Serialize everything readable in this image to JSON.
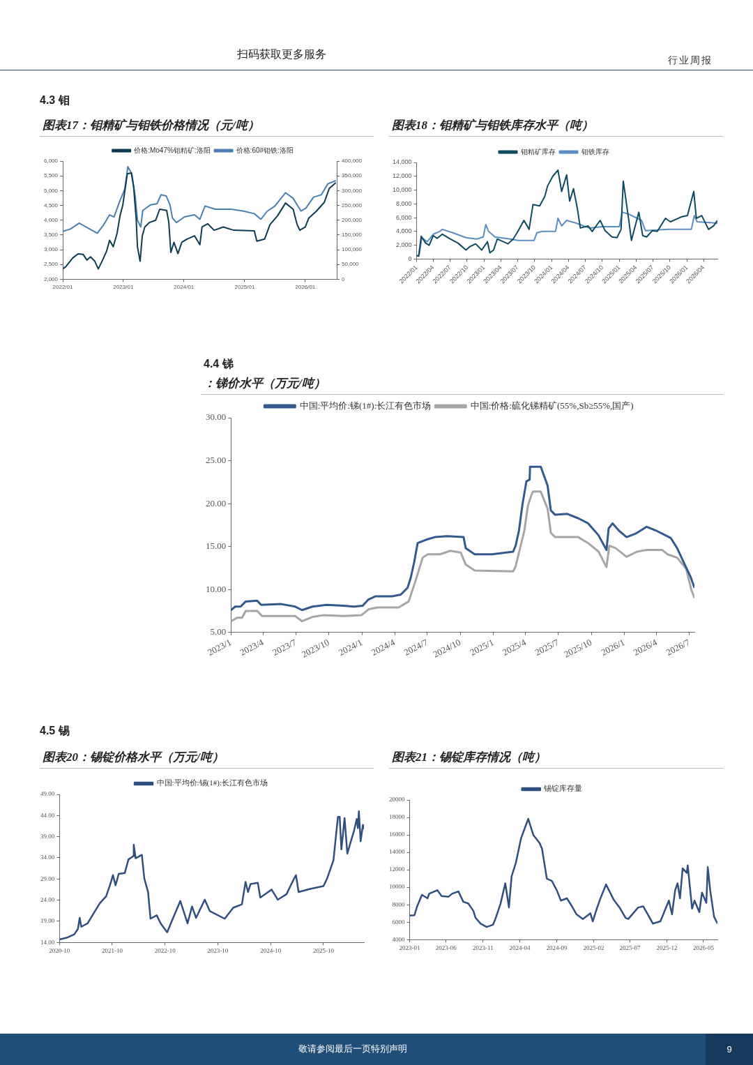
{
  "chart_data": [
    {
      "type": "line",
      "subtitle": "4.3 钼",
      "title": "图表17：钼精矿与钼铁价格情况（元/吨）",
      "annotations": [
        "扫码获取更多服务",
        "行业周报"
      ],
      "legend": "top",
      "xlim": [
        "2022-01-01",
        "2026-07-10"
      ],
      "xticks": [
        {
          "value": "2022-01-01",
          "label": "2022/01"
        },
        {
          "value": "2023-01-01",
          "label": "2023/01"
        },
        {
          "value": "2024-01-01",
          "label": "2024/01"
        },
        {
          "value": "2025-01-01",
          "label": "2025/01"
        },
        {
          "value": "2026-01-01",
          "label": "2026/01"
        }
      ],
      "ylim": [
        2000,
        6000
      ],
      "yticks": [
        {
          "value": 2000,
          "label": "2,000"
        },
        {
          "value": 2500,
          "label": "2,500"
        },
        {
          "value": 3000,
          "label": "3,000"
        },
        {
          "value": 3500,
          "label": "3,500"
        },
        {
          "value": 4000,
          "label": "4,000"
        },
        {
          "value": 4500,
          "label": "4,500"
        },
        {
          "value": 5000,
          "label": "5,000"
        },
        {
          "value": 5500,
          "label": "5,500"
        },
        {
          "value": 6000,
          "label": "6,000"
        }
      ],
      "y2lim": [
        0,
        400000
      ],
      "y2ticks": [
        0,
        {
          "value": 50000,
          "label": "50,000"
        },
        {
          "value": 100000,
          "label": "100,000"
        },
        {
          "value": 150000,
          "label": "150,000"
        },
        {
          "value": 200000,
          "label": "200,000"
        },
        {
          "value": 250000,
          "label": "250,000"
        },
        {
          "value": 300000,
          "label": "300,000"
        },
        {
          "value": 350000,
          "label": "350,000"
        },
        {
          "value": 400000,
          "label": "400,000"
        }
      ],
      "series": [
        {
          "name": "价格:Mo47%钼精矿:洛阳",
          "color": "#0d3b4f",
          "axis": "y",
          "x": [
            "2022-01-01",
            "2022-01-20",
            "2022-03-02",
            "2022-04-03",
            "2022-05-04",
            "2022-05-27",
            "2022-06-17",
            "2022-07-13",
            "2022-08-03",
            "2022-08-29",
            "2022-09-22",
            "2022-10-10",
            "2022-11-01",
            "2022-11-24",
            "2022-12-12",
            "2022-12-29",
            "2023-01-25",
            "2023-02-18",
            "2023-03-04",
            "2023-03-19",
            "2023-03-27",
            "2023-04-12",
            "2023-04-25",
            "2023-05-10",
            "2023-06-06",
            "2023-07-15",
            "2023-08-08",
            "2023-09-19",
            "2023-10-02",
            "2023-10-14",
            "2023-11-02",
            "2023-11-26",
            "2023-12-19",
            "2024-01-19",
            "2024-03-05",
            "2024-04-06",
            "2024-04-19",
            "2024-05-23",
            "2024-07-01",
            "2024-08-25",
            "2024-10-27",
            "2025-02-28",
            "2025-03-15",
            "2025-05-01",
            "2025-06-02",
            "2025-07-18",
            "2025-09-04",
            "2025-10-20",
            "2025-11-13",
            "2025-11-29",
            "2026-01-01",
            "2026-01-22",
            "2026-03-08",
            "2026-04-25",
            "2026-05-26",
            "2026-07-04"
          ],
          "values": [
            2350,
            2430,
            2720,
            2860,
            2840,
            2650,
            2760,
            2610,
            2350,
            2650,
            2950,
            3320,
            3100,
            3550,
            4150,
            4520,
            5570,
            5600,
            5120,
            4070,
            3100,
            2610,
            3470,
            3770,
            3920,
            4000,
            4370,
            4330,
            3920,
            2910,
            3250,
            2870,
            3250,
            3360,
            3470,
            3170,
            3770,
            3880,
            3660,
            3770,
            3660,
            3640,
            3290,
            3360,
            3850,
            4150,
            4580,
            4370,
            3850,
            3660,
            3770,
            4070,
            4300,
            4600,
            5080,
            5270
          ]
        },
        {
          "name": "价格:60#钼铁:洛阳",
          "color": "#4a7fb0",
          "axis": "y2",
          "x": [
            "2022-01-01",
            "2022-02-16",
            "2022-04-10",
            "2022-06-03",
            "2022-07-28",
            "2022-09-05",
            "2022-10-10",
            "2022-11-06",
            "2022-12-12",
            "2023-01-09",
            "2023-01-28",
            "2023-02-21",
            "2023-03-13",
            "2023-03-27",
            "2023-04-16",
            "2023-04-28",
            "2023-06-14",
            "2023-07-23",
            "2023-08-16",
            "2023-09-16",
            "2023-10-09",
            "2023-10-24",
            "2023-11-17",
            "2024-01-04",
            "2024-03-05",
            "2024-04-06",
            "2024-05-07",
            "2024-07-08",
            "2024-10-11",
            "2024-12-21",
            "2025-02-28",
            "2025-04-09",
            "2025-05-16",
            "2025-07-02",
            "2025-09-04",
            "2025-10-20",
            "2025-11-13",
            "2025-12-06",
            "2026-01-05",
            "2026-02-20",
            "2026-04-08",
            "2026-05-17",
            "2026-07-04"
          ],
          "values": [
            162000,
            170000,
            190000,
            173000,
            156000,
            185000,
            218000,
            211000,
            267000,
            304000,
            381000,
            357000,
            282000,
            200000,
            177000,
            233000,
            252000,
            256000,
            286000,
            282000,
            252000,
            207000,
            192000,
            211000,
            218000,
            203000,
            248000,
            237000,
            237000,
            231000,
            222000,
            203000,
            230000,
            248000,
            293000,
            274000,
            252000,
            231000,
            241000,
            278000,
            286000,
            323000,
            334000
          ]
        }
      ]
    },
    {
      "type": "line",
      "title": "图表18：钼精矿与钼铁库存水平（吨）",
      "legend": "top",
      "xlim": [
        "2022-01-01",
        "2026-06-15"
      ],
      "xticks": [
        {
          "value": "2022-01-01",
          "label": "2022/01"
        },
        {
          "value": "2022-04-01",
          "label": "2022/04"
        },
        {
          "value": "2022-07-01",
          "label": "2022/07"
        },
        {
          "value": "2022-10-01",
          "label": "2022/10"
        },
        {
          "value": "2023-01-01",
          "label": "2023/01"
        },
        {
          "value": "2023-04-01",
          "label": "2023/04"
        },
        {
          "value": "2023-07-01",
          "label": "2023/07"
        },
        {
          "value": "2023-10-01",
          "label": "2023/10"
        },
        {
          "value": "2024-01-01",
          "label": "2024/01"
        },
        {
          "value": "2024-04-01",
          "label": "2024/04"
        },
        {
          "value": "2024-07-01",
          "label": "2024/07"
        },
        {
          "value": "2024-10-01",
          "label": "2024/10"
        },
        {
          "value": "2025-01-01",
          "label": "2025/01"
        },
        {
          "value": "2025-04-01",
          "label": "2025/04"
        },
        {
          "value": "2025-07-01",
          "label": "2025/07"
        },
        {
          "value": "2025-10-01",
          "label": "2025/10"
        },
        {
          "value": "2026-01-01",
          "label": "2026/01"
        },
        {
          "value": "2026-04-01",
          "label": "2026/04"
        }
      ],
      "ylim": [
        0,
        14000
      ],
      "yticks": [
        0,
        {
          "value": 2000,
          "label": "2,000"
        },
        {
          "value": 4000,
          "label": "4,000"
        },
        {
          "value": 6000,
          "label": "6,000"
        },
        {
          "value": 8000,
          "label": "8,000"
        },
        {
          "value": 10000,
          "label": "10,000"
        },
        {
          "value": 12000,
          "label": "12,000"
        },
        {
          "value": 14000,
          "label": "14,000"
        }
      ],
      "series": [
        {
          "name": "钼精矿库存",
          "color": "#0e4a5f",
          "x": [
            "2022-01-01",
            "2022-01-12",
            "2022-01-26",
            "2022-02-19",
            "2022-03-10",
            "2022-04-01",
            "2022-04-22",
            "2022-05-20",
            "2022-07-02",
            "2022-08-13",
            "2022-09-25",
            "2022-10-16",
            "2022-11-16",
            "2022-12-19",
            "2023-01-19",
            "2023-02-01",
            "2023-02-21",
            "2023-03-13",
            "2023-05-10",
            "2023-06-07",
            "2023-06-28",
            "2023-08-04",
            "2023-09-01",
            "2023-09-22",
            "2023-10-28",
            "2023-11-25",
            "2023-12-10",
            "2024-01-07",
            "2024-02-04",
            "2024-02-24",
            "2024-03-22",
            "2024-04-07",
            "2024-04-28",
            "2024-05-19",
            "2024-06-04",
            "2024-07-16",
            "2024-08-07",
            "2024-09-19",
            "2024-10-16",
            "2024-11-22",
            "2024-12-19",
            "2025-01-10",
            "2025-01-22",
            "2025-02-21",
            "2025-03-07",
            "2025-04-16",
            "2025-05-07",
            "2025-05-28",
            "2025-06-28",
            "2025-07-25",
            "2025-09-07",
            "2025-10-04",
            "2025-12-01",
            "2026-01-04",
            "2026-02-07",
            "2026-02-21",
            "2026-03-22",
            "2026-04-28",
            "2026-05-25",
            "2026-06-15"
          ],
          "values": [
            500,
            400,
            3300,
            2300,
            2000,
            3400,
            3000,
            3600,
            2900,
            2300,
            1300,
            1800,
            2200,
            1300,
            2500,
            900,
            1300,
            2900,
            2200,
            2900,
            3800,
            5600,
            4300,
            7900,
            7700,
            9100,
            10600,
            12000,
            12900,
            9800,
            12200,
            8400,
            10200,
            7300,
            4500,
            4800,
            4000,
            5600,
            4100,
            3200,
            3100,
            4300,
            11300,
            5600,
            2700,
            6800,
            3400,
            3200,
            4100,
            4000,
            5900,
            5400,
            6100,
            6300,
            9800,
            5900,
            6300,
            4300,
            4800,
            5600
          ]
        },
        {
          "name": "钼铁库存",
          "color": "#5b8dc0",
          "x": [
            "2022-01-01",
            "2022-01-15",
            "2022-01-29",
            "2022-02-27",
            "2022-04-01",
            "2022-05-06",
            "2022-05-20",
            "2022-07-16",
            "2022-09-25",
            "2022-11-22",
            "2022-12-27",
            "2023-01-10",
            "2023-01-25",
            "2023-03-01",
            "2023-05-22",
            "2023-07-04",
            "2023-09-28",
            "2023-10-13",
            "2023-11-10",
            "2024-01-22",
            "2024-02-04",
            "2024-02-24",
            "2024-03-22",
            "2024-05-13",
            "2024-07-22",
            "2024-10-01",
            "2025-01-01",
            "2025-01-16",
            "2025-02-21",
            "2025-05-01",
            "2025-05-22",
            "2025-09-22",
            "2026-01-25",
            "2026-02-10",
            "2026-02-25",
            "2026-06-15"
          ],
          "values": [
            400,
            600,
            3100,
            2500,
            3600,
            4000,
            4300,
            3800,
            3100,
            2900,
            3200,
            5000,
            4000,
            3200,
            2900,
            2700,
            2700,
            3800,
            4000,
            4000,
            5900,
            4800,
            5600,
            5200,
            4500,
            4700,
            4700,
            6800,
            6500,
            5600,
            4100,
            4300,
            4300,
            6300,
            5400,
            5200
          ]
        }
      ]
    },
    {
      "type": "line",
      "subtitle": "4.4 锑",
      "title": "：锑价水平（万元/吨）",
      "legend": "top",
      "xlim": [
        "2023-01-01",
        "2026-07-15"
      ],
      "xticks": [
        {
          "value": "2023-01-01",
          "label": "2023/1"
        },
        {
          "value": "2023-04-01",
          "label": "2023/4"
        },
        {
          "value": "2023-07-01",
          "label": "2023/7"
        },
        {
          "value": "2023-10-01",
          "label": "2023/10"
        },
        {
          "value": "2024-01-01",
          "label": "2024/1"
        },
        {
          "value": "2024-04-01",
          "label": "2024/4"
        },
        {
          "value": "2024-07-01",
          "label": "2024/7"
        },
        {
          "value": "2024-10-01",
          "label": "2024/10"
        },
        {
          "value": "2025-01-01",
          "label": "2025/1"
        },
        {
          "value": "2025-04-01",
          "label": "2025/4"
        },
        {
          "value": "2025-07-01",
          "label": "2025/7"
        },
        {
          "value": "2025-10-01",
          "label": "2025/10"
        },
        {
          "value": "2026-01-01",
          "label": "2026/1"
        },
        {
          "value": "2026-04-01",
          "label": "2026/4"
        },
        {
          "value": "2026-07-01",
          "label": "2026/7"
        }
      ],
      "ylim": [
        5,
        30
      ],
      "yticks": [
        {
          "value": 5,
          "label": "5.00"
        },
        {
          "value": 10,
          "label": "10.00"
        },
        {
          "value": 15,
          "label": "15.00"
        },
        {
          "value": 20,
          "label": "20.00"
        },
        {
          "value": 25,
          "label": "25.00"
        },
        {
          "value": 30,
          "label": "30.00"
        }
      ],
      "series": [
        {
          "name": "中国:平均价:锑(1#):长江有色市场",
          "color": "#335a8c",
          "x": [
            "2023-01-01",
            "2023-01-13",
            "2023-01-28",
            "2023-02-11",
            "2023-03-15",
            "2023-03-26",
            "2023-05-21",
            "2023-06-29",
            "2023-07-18",
            "2023-08-16",
            "2023-09-24",
            "2023-11-11",
            "2023-12-09",
            "2024-01-03",
            "2024-01-18",
            "2024-02-07",
            "2024-03-25",
            "2024-04-18",
            "2024-05-07",
            "2024-05-16",
            "2024-05-25",
            "2024-06-04",
            "2024-06-28",
            "2024-07-22",
            "2024-08-25",
            "2024-10-10",
            "2024-10-16",
            "2024-11-10",
            "2024-12-28",
            "2025-02-25",
            "2025-03-04",
            "2025-03-13",
            "2025-03-23",
            "2025-04-03",
            "2025-04-12",
            "2025-04-13",
            "2025-05-13",
            "2025-06-01",
            "2025-06-10",
            "2025-06-22",
            "2025-07-26",
            "2025-08-25",
            "2025-09-22",
            "2025-10-21",
            "2025-11-12",
            "2025-11-18",
            "2025-11-29",
            "2025-12-18",
            "2026-01-07",
            "2026-02-01",
            "2026-03-04",
            "2026-04-02",
            "2026-05-10",
            "2026-05-28",
            "2026-06-18",
            "2026-07-04",
            "2026-07-15"
          ],
          "values": [
            7.6,
            8.0,
            8.0,
            8.6,
            8.7,
            8.2,
            8.3,
            8.0,
            7.6,
            8.0,
            8.2,
            8.1,
            8.0,
            8.1,
            8.8,
            9.2,
            9.2,
            9.4,
            10.2,
            11.4,
            13.1,
            15.4,
            15.8,
            16.1,
            16.2,
            16.1,
            14.8,
            14.1,
            14.1,
            14.4,
            15.1,
            16.8,
            19.9,
            22.6,
            22.8,
            24.3,
            24.3,
            22.1,
            19.2,
            18.7,
            18.8,
            18.3,
            17.7,
            16.3,
            14.6,
            17.1,
            17.7,
            16.8,
            16.1,
            16.5,
            17.3,
            16.8,
            16.0,
            14.8,
            12.9,
            11.5,
            10.2
          ]
        },
        {
          "name": "中国:价格:硫化锑精矿(55%,Sb≥55%,国产)",
          "color": "#a6a6a6",
          "x": [
            "2023-01-01",
            "2023-01-18",
            "2023-02-01",
            "2023-02-11",
            "2023-03-15",
            "2023-03-29",
            "2023-06-29",
            "2023-07-18",
            "2023-08-16",
            "2023-09-14",
            "2023-11-11",
            "2023-12-30",
            "2024-01-20",
            "2024-02-13",
            "2024-04-12",
            "2024-05-10",
            "2024-05-29",
            "2024-06-18",
            "2024-07-02",
            "2024-08-05",
            "2024-09-03",
            "2024-10-02",
            "2024-10-16",
            "2024-11-10",
            "2025-02-25",
            "2025-03-04",
            "2025-03-28",
            "2025-04-07",
            "2025-04-16",
            "2025-04-21",
            "2025-05-13",
            "2025-06-01",
            "2025-06-10",
            "2025-06-22",
            "2025-08-25",
            "2025-09-22",
            "2025-10-21",
            "2025-11-12",
            "2025-11-20",
            "2025-12-08",
            "2026-01-07",
            "2026-02-05",
            "2026-03-04",
            "2026-04-16",
            "2026-05-01",
            "2026-05-28",
            "2026-06-22",
            "2026-07-06",
            "2026-07-15"
          ],
          "values": [
            6.3,
            6.7,
            6.7,
            7.5,
            7.5,
            6.9,
            6.9,
            6.3,
            6.8,
            7.0,
            6.9,
            7.0,
            7.7,
            7.9,
            7.9,
            8.6,
            11.0,
            13.7,
            14.1,
            14.1,
            14.5,
            14.3,
            12.9,
            12.2,
            12.1,
            12.7,
            16.8,
            19.7,
            20.9,
            21.4,
            21.4,
            19.4,
            16.6,
            16.1,
            16.1,
            15.4,
            14.4,
            12.6,
            15.1,
            14.8,
            13.8,
            14.4,
            14.6,
            14.6,
            14.1,
            13.7,
            12.4,
            10.0,
            9.0
          ]
        }
      ]
    },
    {
      "type": "line",
      "subtitle": "4.5 锡",
      "title": "图表20：锡锭价格水平（万元/吨）",
      "legend": "top",
      "xlim": [
        "2020-10-01",
        "2026-07-08"
      ],
      "xticks": [
        "2020-10",
        "2021-10",
        "2022-10",
        "2023-10",
        "2024-10",
        "2025-10"
      ],
      "ylim": [
        14,
        49
      ],
      "yticks": [
        {
          "value": 14,
          "label": "14.00"
        },
        {
          "value": 19,
          "label": "19.00"
        },
        {
          "value": 24,
          "label": "24.00"
        },
        {
          "value": 29,
          "label": "29.00"
        },
        {
          "value": 34,
          "label": "34.00"
        },
        {
          "value": 39,
          "label": "39.00"
        },
        {
          "value": 44,
          "label": "44.00"
        },
        {
          "value": 49,
          "label": "49.00"
        }
      ],
      "series": [
        {
          "name": "中国:平均价:锡(1#):长江有色市场",
          "color": "#2f4f7f",
          "x": [
            "2020-10-01",
            "2020-11-20",
            "2021-01-12",
            "2021-02-06",
            "2021-02-18",
            "2021-03-01",
            "2021-04-14",
            "2021-05-26",
            "2021-07-08",
            "2021-08-20",
            "2021-09-15",
            "2021-10-06",
            "2021-10-24",
            "2021-11-15",
            "2021-12-27",
            "2022-01-21",
            "2022-02-24",
            "2022-02-27",
            "2022-03-12",
            "2022-04-24",
            "2022-05-11",
            "2022-06-06",
            "2022-06-23",
            "2022-08-05",
            "2022-09-01",
            "2022-10-16",
            "2022-11-24",
            "2023-01-15",
            "2023-03-06",
            "2023-04-06",
            "2023-05-04",
            "2023-07-03",
            "2023-08-07",
            "2023-11-18",
            "2024-01-16",
            "2024-03-16",
            "2024-04-10",
            "2024-04-27",
            "2024-05-15",
            "2024-07-04",
            "2024-07-21",
            "2024-10-07",
            "2024-11-19",
            "2025-01-18",
            "2025-03-09",
            "2025-03-25",
            "2025-04-12",
            "2025-07-06",
            "2025-10-01",
            "2025-10-26",
            "2025-12-09",
            "2026-01-09",
            "2026-01-21",
            "2026-02-02",
            "2026-02-24",
            "2026-03-15",
            "2026-04-06",
            "2026-05-01",
            "2026-05-19",
            "2026-05-27",
            "2026-06-03",
            "2026-06-15",
            "2026-07-01",
            "2026-07-08"
          ],
          "values": [
            14.7,
            15.1,
            15.9,
            17.2,
            19.8,
            17.7,
            18.5,
            20.9,
            23.3,
            24.9,
            27.5,
            29.9,
            27.5,
            30.2,
            30.4,
            33.6,
            34.4,
            37.1,
            33.9,
            34.7,
            29.1,
            25.9,
            19.6,
            20.4,
            18.5,
            16.4,
            19.6,
            23.8,
            18.5,
            22.5,
            19.8,
            24.1,
            21.4,
            19.6,
            22.2,
            23.0,
            28.3,
            25.9,
            27.8,
            28.1,
            24.6,
            26.5,
            24.1,
            25.4,
            28.9,
            29.9,
            25.9,
            26.7,
            27.3,
            29.1,
            33.4,
            43.7,
            43.7,
            36.0,
            43.4,
            35.0,
            37.6,
            40.5,
            43.2,
            41.0,
            45.0,
            37.9,
            41.8,
            40.8
          ]
        }
      ]
    },
    {
      "type": "line",
      "title": "图表21：锡锭库存情况（吨）",
      "annotations": [
        "敬请参阅最后一页特别声明",
        "9"
      ],
      "legend": "top",
      "xlim": [
        "2023-01-01",
        "2026-06-28"
      ],
      "xticks": [
        "2023-01",
        "2023-06",
        "2023-11",
        "2024-04",
        "2024-09",
        "2025-02",
        "2025-07",
        "2025-12",
        "2026-05"
      ],
      "ylim": [
        4000,
        20000
      ],
      "yticks": [
        4000,
        6000,
        8000,
        10000,
        12000,
        14000,
        16000,
        18000,
        20000
      ],
      "series": [
        {
          "name": "锡锭库存量",
          "color": "#2f4f7f",
          "x": [
            "2023-01-01",
            "2023-01-21",
            "2023-02-01",
            "2023-02-21",
            "2023-03-16",
            "2023-03-23",
            "2023-04-26",
            "2023-05-13",
            "2023-06-11",
            "2023-06-26",
            "2023-07-22",
            "2023-08-11",
            "2023-09-01",
            "2023-09-22",
            "2023-10-01",
            "2023-10-22",
            "2023-11-16",
            "2023-12-12",
            "2023-12-22",
            "2024-01-12",
            "2024-02-01",
            "2024-02-16",
            "2024-02-27",
            "2024-03-16",
            "2024-04-06",
            "2024-05-06",
            "2024-05-27",
            "2024-06-22",
            "2024-07-02",
            "2024-07-22",
            "2024-08-12",
            "2024-09-01",
            "2024-09-18",
            "2024-10-13",
            "2024-11-03",
            "2024-11-22",
            "2024-12-18",
            "2025-01-18",
            "2025-01-28",
            "2025-02-12",
            "2025-02-27",
            "2025-03-24",
            "2025-04-24",
            "2025-05-19",
            "2025-06-13",
            "2025-06-24",
            "2025-08-04",
            "2025-08-25",
            "2025-09-10",
            "2025-10-04",
            "2025-11-04",
            "2025-12-09",
            "2025-12-22",
            "2026-01-04",
            "2026-01-14",
            "2026-01-24",
            "2026-02-04",
            "2026-02-21",
            "2026-02-25",
            "2026-03-15",
            "2026-03-25",
            "2026-04-14",
            "2026-04-25",
            "2026-05-13",
            "2026-05-19",
            "2026-05-29",
            "2026-06-14",
            "2026-06-28"
          ],
          "values": [
            6750,
            6800,
            7800,
            9130,
            8730,
            9260,
            9660,
            9000,
            8920,
            9260,
            9520,
            8340,
            8130,
            7280,
            6490,
            5830,
            5440,
            5700,
            6360,
            8080,
            10450,
            7680,
            11240,
            12820,
            15590,
            17840,
            15990,
            15070,
            14410,
            10980,
            10710,
            9660,
            8470,
            8730,
            7810,
            6890,
            6360,
            7020,
            6090,
            7410,
            8600,
            10320,
            8600,
            7680,
            6490,
            6360,
            7680,
            7810,
            7020,
            5830,
            6090,
            8470,
            6890,
            9660,
            10450,
            8730,
            12160,
            11640,
            12510,
            7550,
            8470,
            7150,
            9390,
            8210,
            12300,
            9660,
            6620,
            5830
          ]
        }
      ]
    }
  ]
}
